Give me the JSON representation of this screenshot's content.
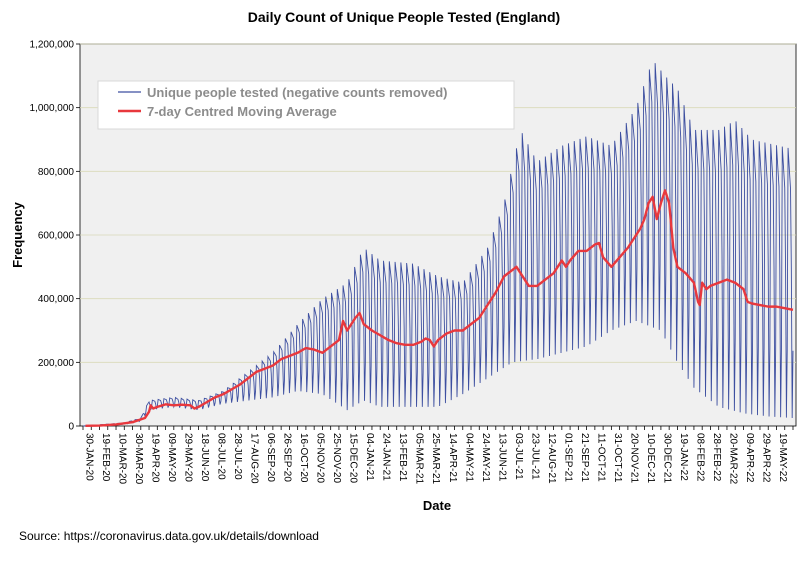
{
  "chart_data": {
    "type": "line",
    "title": "Daily Count of Unique People Tested (England)",
    "xlabel": "Date",
    "ylabel": "Frequency",
    "ylim": [
      0,
      1200000
    ],
    "yticks": [
      0,
      200000,
      400000,
      600000,
      800000,
      1000000,
      1200000
    ],
    "ytick_labels": [
      "0",
      "200,000",
      "400,000",
      "600,000",
      "800,000",
      "1,000,000",
      "1,200,000"
    ],
    "x_range_days": [
      0,
      860
    ],
    "xticks": [
      {
        "day": 0,
        "label": "30-JAN-20"
      },
      {
        "day": 20,
        "label": "19-FEB-20"
      },
      {
        "day": 40,
        "label": "10-MAR-20"
      },
      {
        "day": 60,
        "label": "30-MAR-20"
      },
      {
        "day": 80,
        "label": "19-APR-20"
      },
      {
        "day": 100,
        "label": "09-MAY-20"
      },
      {
        "day": 120,
        "label": "29-MAY-20"
      },
      {
        "day": 140,
        "label": "18-JUN-20"
      },
      {
        "day": 160,
        "label": "08-JUL-20"
      },
      {
        "day": 180,
        "label": "28-JUL-20"
      },
      {
        "day": 200,
        "label": "17-AUG-20"
      },
      {
        "day": 220,
        "label": "06-SEP-20"
      },
      {
        "day": 240,
        "label": "26-SEP-20"
      },
      {
        "day": 260,
        "label": "16-OCT-20"
      },
      {
        "day": 280,
        "label": "05-NOV-20"
      },
      {
        "day": 300,
        "label": "25-NOV-20"
      },
      {
        "day": 320,
        "label": "15-DEC-20"
      },
      {
        "day": 340,
        "label": "04-JAN-21"
      },
      {
        "day": 360,
        "label": "24-JAN-21"
      },
      {
        "day": 380,
        "label": "13-FEB-21"
      },
      {
        "day": 400,
        "label": "05-MAR-21"
      },
      {
        "day": 420,
        "label": "25-MAR-21"
      },
      {
        "day": 440,
        "label": "14-APR-21"
      },
      {
        "day": 460,
        "label": "04-MAY-21"
      },
      {
        "day": 480,
        "label": "24-MAY-21"
      },
      {
        "day": 500,
        "label": "13-JUN-21"
      },
      {
        "day": 520,
        "label": "03-JUL-21"
      },
      {
        "day": 540,
        "label": "23-JUL-21"
      },
      {
        "day": 560,
        "label": "12-AUG-21"
      },
      {
        "day": 580,
        "label": "01-SEP-21"
      },
      {
        "day": 600,
        "label": "21-SEP-21"
      },
      {
        "day": 620,
        "label": "11-OCT-21"
      },
      {
        "day": 640,
        "label": "31-OCT-21"
      },
      {
        "day": 660,
        "label": "20-NOV-21"
      },
      {
        "day": 680,
        "label": "10-DEC-21"
      },
      {
        "day": 700,
        "label": "30-DEC-21"
      },
      {
        "day": 720,
        "label": "19-JAN-22"
      },
      {
        "day": 740,
        "label": "08-FEB-22"
      },
      {
        "day": 760,
        "label": "28-FEB-22"
      },
      {
        "day": 780,
        "label": "20-MAR-22"
      },
      {
        "day": 800,
        "label": "09-APR-22"
      },
      {
        "day": 820,
        "label": "29-APR-22"
      },
      {
        "day": 840,
        "label": "19-MAY-22"
      }
    ],
    "series": [
      {
        "name": "Unique people tested (negative counts removed)",
        "style": "weekly-oscillating line",
        "color": "#3d4fa0",
        "weekly_peak_envelope": [
          [
            0,
            0
          ],
          [
            50,
            10000
          ],
          [
            70,
            25000
          ],
          [
            80,
            80000
          ],
          [
            110,
            90000
          ],
          [
            140,
            80000
          ],
          [
            170,
            110000
          ],
          [
            200,
            170000
          ],
          [
            230,
            230000
          ],
          [
            260,
            320000
          ],
          [
            290,
            400000
          ],
          [
            320,
            450000
          ],
          [
            340,
            560000
          ],
          [
            360,
            520000
          ],
          [
            400,
            510000
          ],
          [
            430,
            470000
          ],
          [
            460,
            450000
          ],
          [
            490,
            560000
          ],
          [
            510,
            700000
          ],
          [
            530,
            930000
          ],
          [
            550,
            830000
          ],
          [
            580,
            880000
          ],
          [
            610,
            910000
          ],
          [
            640,
            880000
          ],
          [
            670,
            1000000
          ],
          [
            690,
            1150000
          ],
          [
            705,
            1100000
          ],
          [
            720,
            1060000
          ],
          [
            740,
            930000
          ],
          [
            770,
            930000
          ],
          [
            790,
            960000
          ],
          [
            810,
            900000
          ],
          [
            860,
            870000
          ]
        ],
        "weekly_trough_envelope": [
          [
            0,
            0
          ],
          [
            50,
            5000
          ],
          [
            70,
            15000
          ],
          [
            80,
            50000
          ],
          [
            110,
            60000
          ],
          [
            140,
            50000
          ],
          [
            170,
            70000
          ],
          [
            200,
            80000
          ],
          [
            230,
            90000
          ],
          [
            260,
            110000
          ],
          [
            290,
            100000
          ],
          [
            320,
            50000
          ],
          [
            340,
            80000
          ],
          [
            360,
            60000
          ],
          [
            400,
            60000
          ],
          [
            430,
            60000
          ],
          [
            460,
            100000
          ],
          [
            490,
            150000
          ],
          [
            520,
            200000
          ],
          [
            550,
            210000
          ],
          [
            580,
            230000
          ],
          [
            610,
            250000
          ],
          [
            640,
            300000
          ],
          [
            670,
            330000
          ],
          [
            700,
            300000
          ],
          [
            720,
            200000
          ],
          [
            740,
            120000
          ],
          [
            770,
            60000
          ],
          [
            800,
            40000
          ],
          [
            830,
            30000
          ],
          [
            860,
            25000
          ]
        ]
      },
      {
        "name": "7-day Centred Moving Average",
        "color": "#e8383d",
        "points": [
          [
            3,
            500
          ],
          [
            20,
            1500
          ],
          [
            40,
            5000
          ],
          [
            60,
            12000
          ],
          [
            75,
            25000
          ],
          [
            80,
            45000
          ],
          [
            82,
            65000
          ],
          [
            85,
            55000
          ],
          [
            90,
            60000
          ],
          [
            100,
            68000
          ],
          [
            110,
            65000
          ],
          [
            120,
            67000
          ],
          [
            130,
            65000
          ],
          [
            135,
            55000
          ],
          [
            140,
            60000
          ],
          [
            150,
            75000
          ],
          [
            160,
            90000
          ],
          [
            170,
            100000
          ],
          [
            180,
            115000
          ],
          [
            190,
            130000
          ],
          [
            200,
            150000
          ],
          [
            210,
            170000
          ],
          [
            220,
            180000
          ],
          [
            230,
            190000
          ],
          [
            240,
            210000
          ],
          [
            250,
            220000
          ],
          [
            260,
            230000
          ],
          [
            270,
            245000
          ],
          [
            280,
            240000
          ],
          [
            290,
            230000
          ],
          [
            300,
            250000
          ],
          [
            310,
            270000
          ],
          [
            315,
            330000
          ],
          [
            320,
            300000
          ],
          [
            330,
            340000
          ],
          [
            335,
            355000
          ],
          [
            340,
            320000
          ],
          [
            350,
            300000
          ],
          [
            360,
            285000
          ],
          [
            370,
            270000
          ],
          [
            380,
            260000
          ],
          [
            390,
            255000
          ],
          [
            400,
            255000
          ],
          [
            410,
            265000
          ],
          [
            415,
            275000
          ],
          [
            420,
            270000
          ],
          [
            425,
            250000
          ],
          [
            430,
            270000
          ],
          [
            440,
            290000
          ],
          [
            450,
            300000
          ],
          [
            460,
            300000
          ],
          [
            470,
            320000
          ],
          [
            480,
            340000
          ],
          [
            490,
            380000
          ],
          [
            500,
            420000
          ],
          [
            510,
            470000
          ],
          [
            520,
            490000
          ],
          [
            525,
            500000
          ],
          [
            530,
            480000
          ],
          [
            540,
            440000
          ],
          [
            550,
            440000
          ],
          [
            560,
            460000
          ],
          [
            570,
            480000
          ],
          [
            575,
            500000
          ],
          [
            580,
            520000
          ],
          [
            585,
            500000
          ],
          [
            590,
            520000
          ],
          [
            600,
            550000
          ],
          [
            610,
            550000
          ],
          [
            620,
            570000
          ],
          [
            625,
            575000
          ],
          [
            630,
            530000
          ],
          [
            640,
            500000
          ],
          [
            650,
            530000
          ],
          [
            660,
            560000
          ],
          [
            670,
            600000
          ],
          [
            675,
            620000
          ],
          [
            680,
            650000
          ],
          [
            685,
            700000
          ],
          [
            690,
            720000
          ],
          [
            695,
            650000
          ],
          [
            700,
            700000
          ],
          [
            705,
            740000
          ],
          [
            710,
            700000
          ],
          [
            715,
            560000
          ],
          [
            720,
            500000
          ],
          [
            730,
            480000
          ],
          [
            740,
            450000
          ],
          [
            745,
            390000
          ],
          [
            747,
            380000
          ],
          [
            750,
            450000
          ],
          [
            755,
            430000
          ],
          [
            760,
            440000
          ],
          [
            770,
            450000
          ],
          [
            780,
            460000
          ],
          [
            790,
            450000
          ],
          [
            800,
            430000
          ],
          [
            805,
            390000
          ],
          [
            810,
            385000
          ],
          [
            820,
            380000
          ],
          [
            830,
            375000
          ],
          [
            840,
            375000
          ],
          [
            850,
            370000
          ],
          [
            860,
            365000
          ]
        ]
      }
    ]
  },
  "source_text": "Source: https://coronavirus.data.gov.uk/details/download"
}
